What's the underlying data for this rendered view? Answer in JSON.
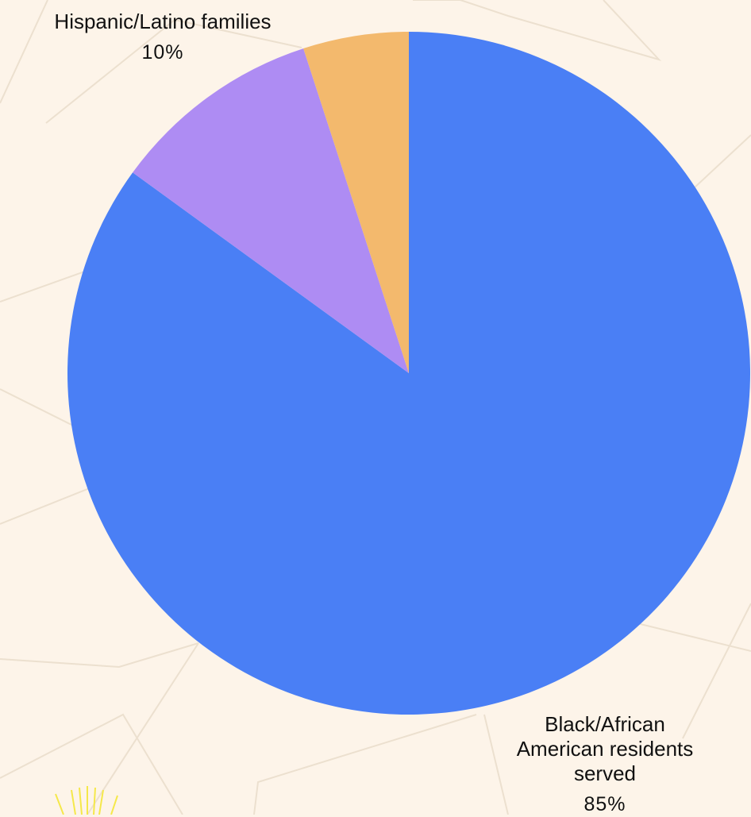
{
  "chart_data": {
    "type": "pie",
    "categories": [
      "Black/African American residents served",
      "Hispanic/Latino families",
      null
    ],
    "values": [
      85,
      10,
      5
    ],
    "value_labels": [
      "85%",
      "10%",
      null
    ],
    "colors": [
      "#4a7ff5",
      "#ae8cf3",
      "#f3b96d"
    ]
  }
}
